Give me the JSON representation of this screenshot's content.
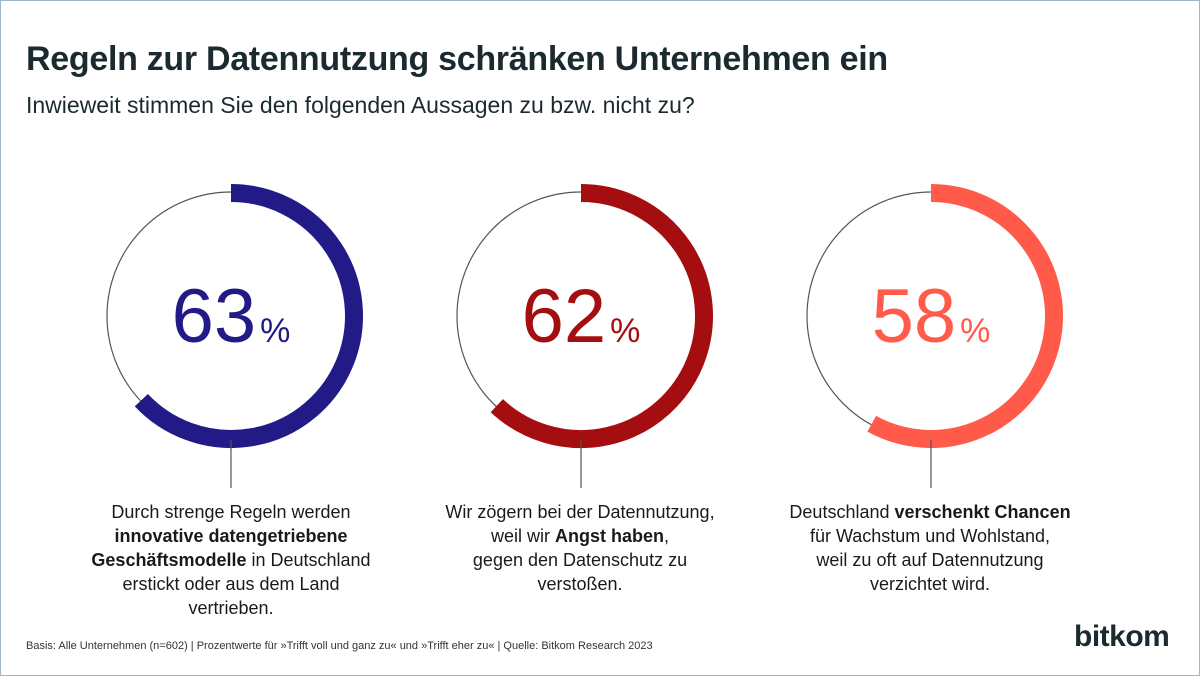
{
  "title": "Regeln zur Datennutzung schränken Unternehmen ein",
  "subtitle": "Inwieweit stimmen Sie den folgenden Aussagen zu bzw. nicht zu?",
  "chart_data": {
    "type": "donut",
    "unit": "%",
    "items": [
      {
        "value": 63,
        "color": "#221a86"
      },
      {
        "value": 62,
        "color": "#a50e10"
      },
      {
        "value": 58,
        "color": "#ff5a4a"
      }
    ]
  },
  "captions": [
    {
      "parts": [
        {
          "text": "Durch strenge Regeln werden",
          "bold": false,
          "br": true
        },
        {
          "text": "innovative datengetriebene",
          "bold": true,
          "br": true
        },
        {
          "text": "Geschäftsmodelle",
          "bold": true,
          "br": false
        },
        {
          "text": " in Deutschland",
          "bold": false,
          "br": true
        },
        {
          "text": "erstickt oder aus dem Land vertrieben.",
          "bold": false,
          "br": false
        }
      ]
    },
    {
      "parts": [
        {
          "text": "Wir zögern bei der Datennutzung,",
          "bold": false,
          "br": true
        },
        {
          "text": "weil wir ",
          "bold": false,
          "br": false
        },
        {
          "text": "Angst haben",
          "bold": true,
          "br": false
        },
        {
          "text": ",",
          "bold": false,
          "br": true
        },
        {
          "text": "gegen den Datenschutz zu verstoßen.",
          "bold": false,
          "br": false
        }
      ]
    },
    {
      "parts": [
        {
          "text": "Deutschland ",
          "bold": false,
          "br": false
        },
        {
          "text": "verschenkt Chancen",
          "bold": true,
          "br": true
        },
        {
          "text": "für Wachstum und Wohlstand,",
          "bold": false,
          "br": true
        },
        {
          "text": "weil zu oft auf Datennutzung",
          "bold": false,
          "br": true
        },
        {
          "text": "verzichtet wird.",
          "bold": false,
          "br": false
        }
      ]
    }
  ],
  "footer": "Basis: Alle Unternehmen (n=602) | Prozentwerte für »Trifft voll und ganz zu« und »Trifft eher zu« | Quelle: Bitkom Research 2023",
  "logo": "bitkom"
}
